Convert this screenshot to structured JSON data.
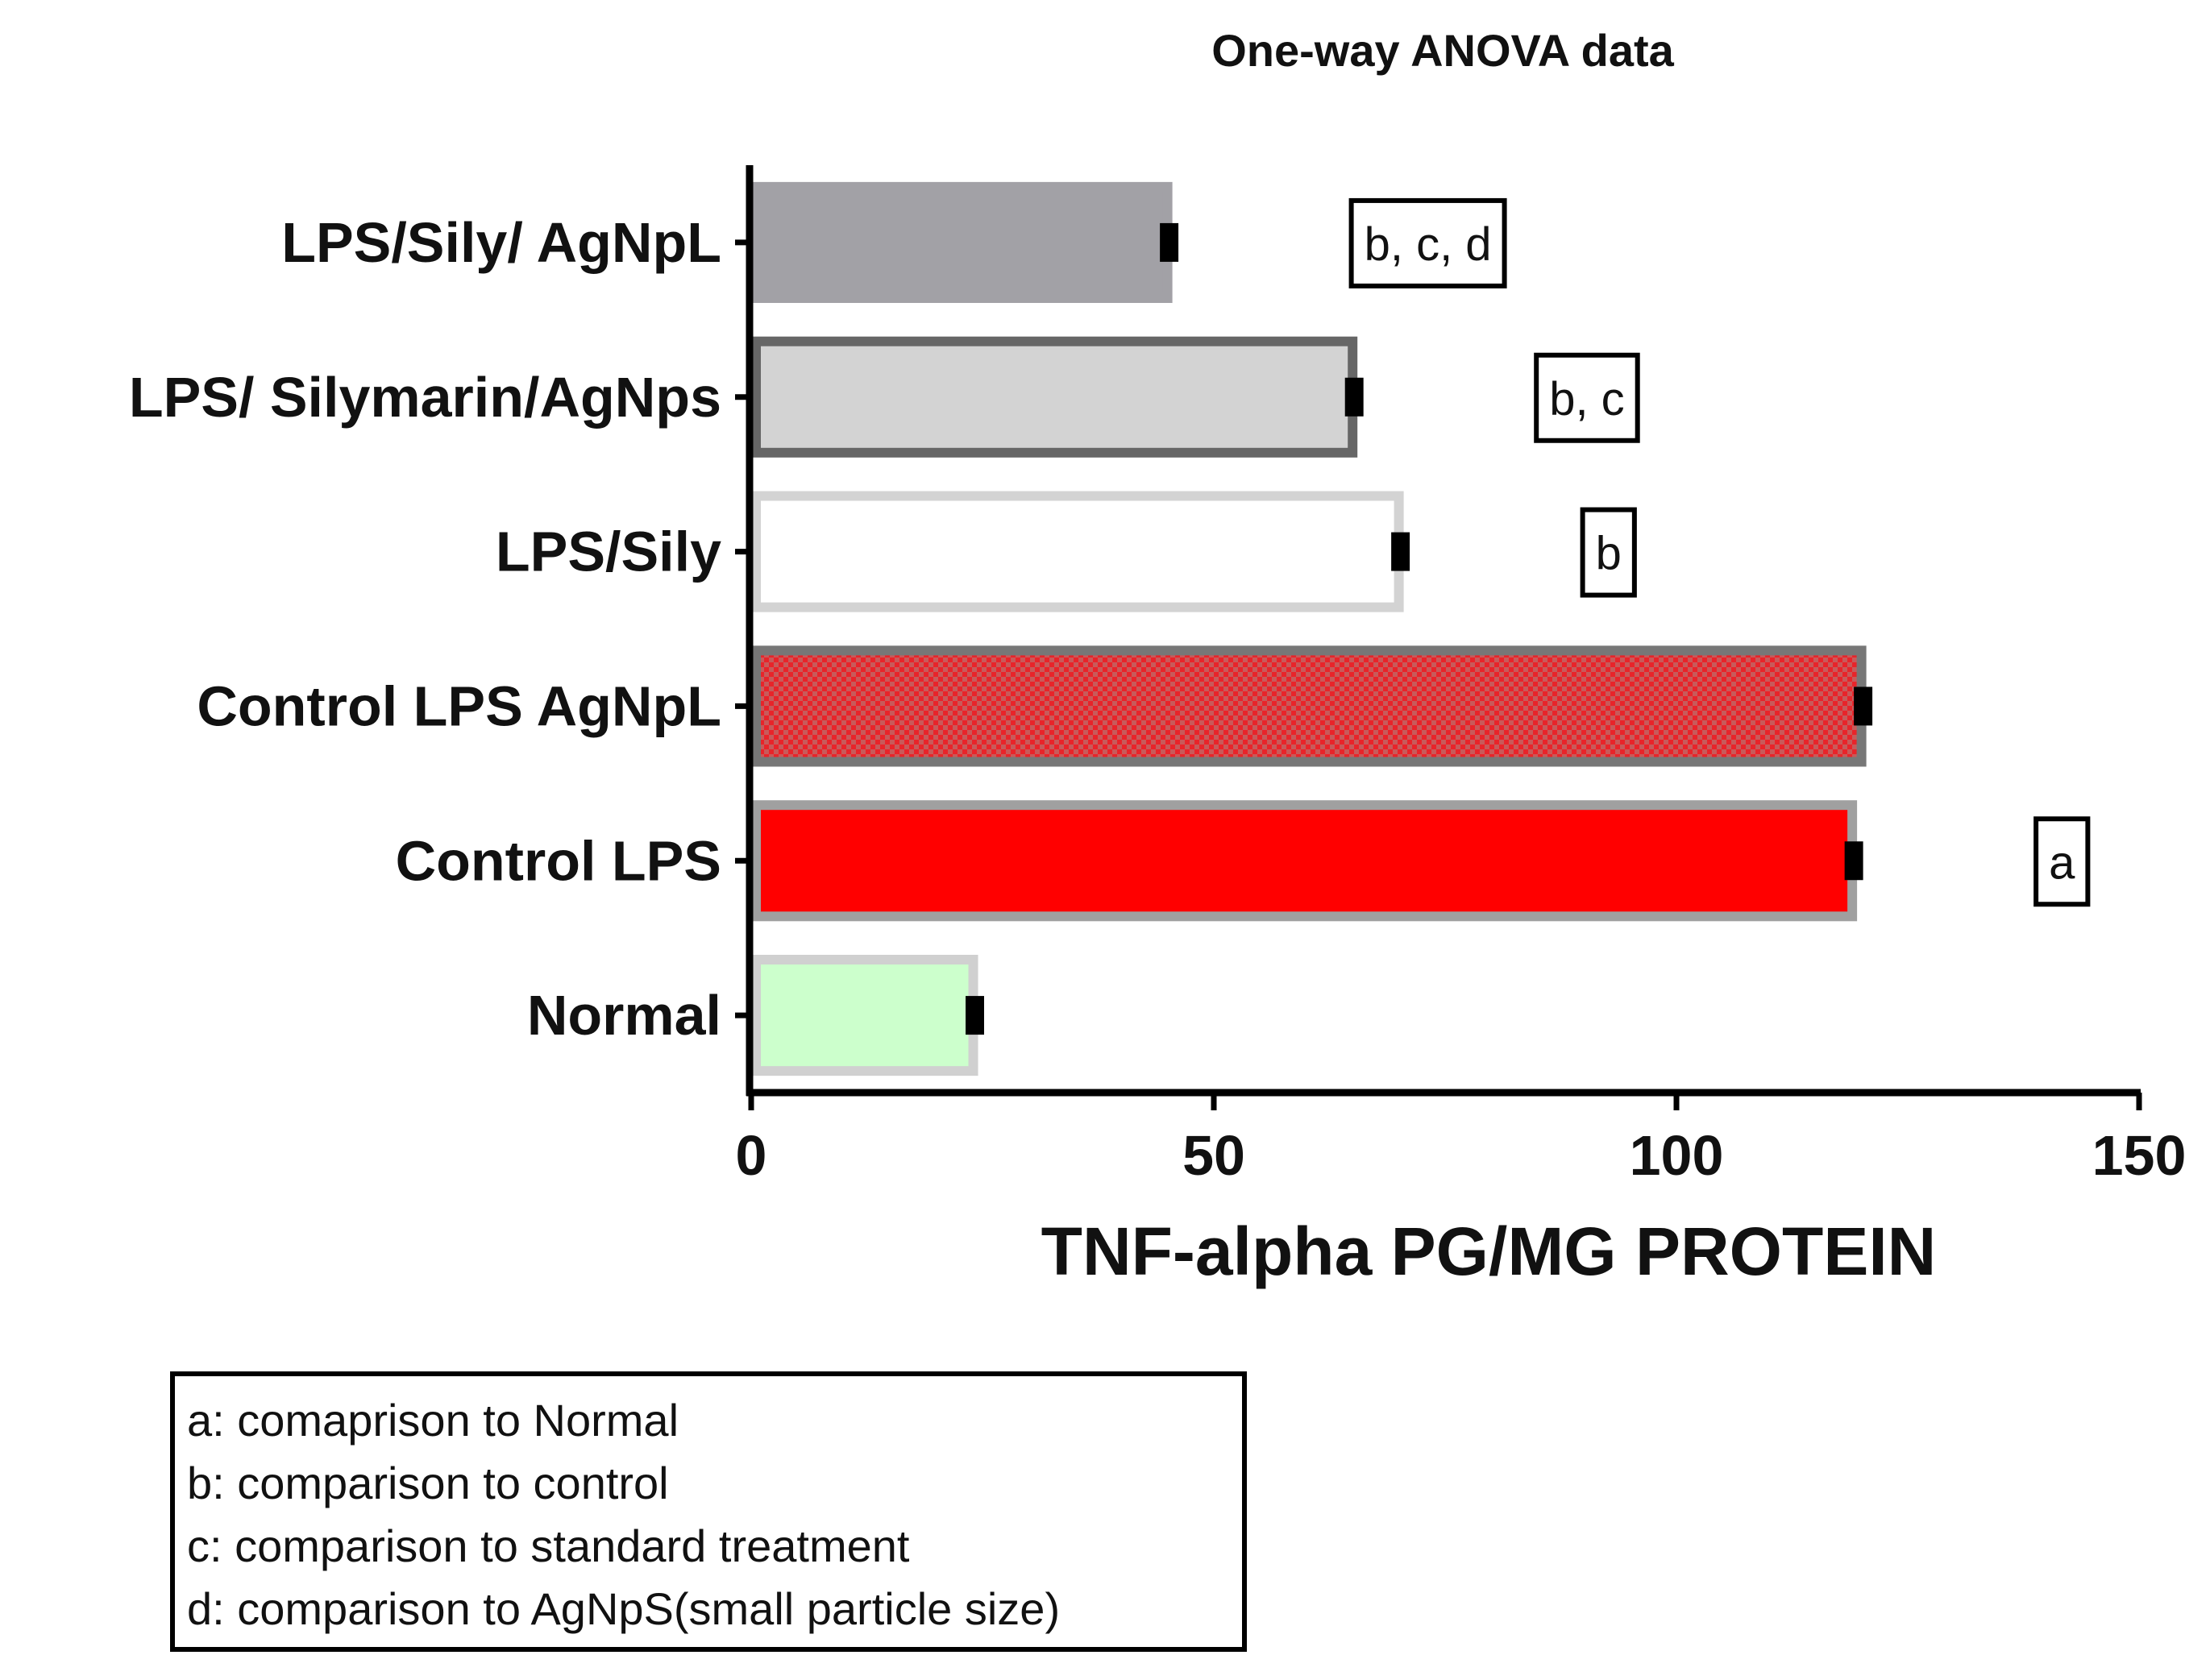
{
  "chart_data": {
    "type": "bar",
    "orientation": "horizontal",
    "title": "One-way ANOVA data",
    "xlabel": "TNF-alpha PG/MG PROTEIN",
    "xlim": [
      0,
      150
    ],
    "xticks": [
      0,
      50,
      100,
      150
    ],
    "categories": [
      "LPS/Sily/ AgNpL",
      "LPS/ Silymarin/AgNps",
      "LPS/Sily",
      "Control LPS AgNpL",
      "Control LPS",
      "Normal"
    ],
    "values": [
      45,
      65,
      70,
      120,
      119,
      24
    ],
    "errors": [
      1,
      1,
      1,
      1,
      1,
      1
    ],
    "annotations": [
      "b, c, d",
      "b, c",
      "b",
      "",
      "a",
      ""
    ],
    "bar_fill": [
      "#a2a1a6",
      "#d3d3d3",
      "#ffffff",
      "pattern-red-check",
      "#ff0000",
      "#ccffcc"
    ],
    "bar_stroke": [
      "#a2a1a6",
      "#666666",
      "#d3d3d3",
      "#777777",
      "#a0a0a0",
      "#d0d0d0"
    ],
    "grid": false,
    "legend": {
      "placement": "bottom-left",
      "entries": [
        "a: comaprison to Normal",
        "b: comparison to control",
        "c: comparison to standard treatment",
        "d: comparison to AgNpS(small particle size)"
      ]
    }
  }
}
